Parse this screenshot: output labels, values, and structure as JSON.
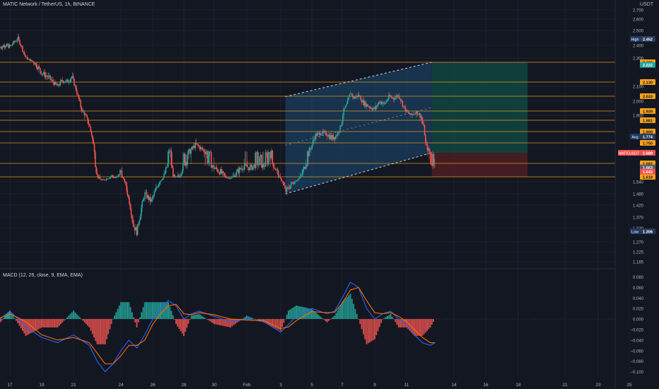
{
  "header": {
    "title": "MATIC Network / TetherUS, 1h, BINANCE",
    "unit": "USDT"
  },
  "macd": {
    "title": "MACD (12, 26, close, 9, EMA, EMA)",
    "ticks": [
      {
        "v": 0.08,
        "label": "0.080"
      },
      {
        "v": 0.06,
        "label": "0.060"
      },
      {
        "v": 0.04,
        "label": "0.040"
      },
      {
        "v": 0.02,
        "label": "0.020"
      },
      {
        "v": 0.0,
        "label": "0.000"
      },
      {
        "v": -0.02,
        "label": "−0.020"
      },
      {
        "v": -0.04,
        "label": "−0.040"
      },
      {
        "v": -0.06,
        "label": "−0.060"
      },
      {
        "v": -0.08,
        "label": "−0.080"
      },
      {
        "v": -0.1,
        "label": "−0.100"
      }
    ]
  },
  "chart_data": {
    "type": "candlestick",
    "symbol": "MATICUSDT",
    "interval": "1h",
    "exchange": "BINANCE",
    "y_ticks": [
      {
        "v": 2.7,
        "label": "2.700"
      },
      {
        "v": 2.6,
        "label": "2.600"
      },
      {
        "v": 2.5,
        "label": "2.500"
      },
      {
        "v": 2.4,
        "label": "2.400"
      },
      {
        "v": 2.3,
        "label": "2.300"
      },
      {
        "v": 2.1,
        "label": "2.100"
      },
      {
        "v": 2.0,
        "label": "2.000"
      },
      {
        "v": 1.9,
        "label": "1.900"
      },
      {
        "v": 1.54,
        "label": "1.540"
      },
      {
        "v": 1.48,
        "label": "1.480"
      },
      {
        "v": 1.42,
        "label": "1.420"
      },
      {
        "v": 1.37,
        "label": "1.370"
      },
      {
        "v": 1.32,
        "label": "1.320"
      },
      {
        "v": 1.27,
        "label": "1.270"
      },
      {
        "v": 1.225,
        "label": "1.225"
      },
      {
        "v": 1.185,
        "label": "1.185"
      }
    ],
    "x_ticks": [
      {
        "day": 17,
        "label": "17"
      },
      {
        "day": 19,
        "label": "19"
      },
      {
        "day": 21,
        "label": "21"
      },
      {
        "day": 24,
        "label": "24"
      },
      {
        "day": 26,
        "label": "26"
      },
      {
        "day": 28,
        "label": "28"
      },
      {
        "day": 30,
        "label": "30"
      },
      {
        "day": 32,
        "label": "Feb"
      },
      {
        "day": 34,
        "label": "3"
      },
      {
        "day": 36,
        "label": "5"
      },
      {
        "day": 38,
        "label": "7"
      },
      {
        "day": 40,
        "label": "9"
      },
      {
        "day": 42,
        "label": "11"
      },
      {
        "day": 45,
        "label": "14"
      },
      {
        "day": 47,
        "label": "16"
      },
      {
        "day": 49,
        "label": "18"
      },
      {
        "day": 52,
        "label": "21"
      },
      {
        "day": 54,
        "label": "23"
      },
      {
        "day": 56,
        "label": "25"
      }
    ],
    "horizontal_levels": [
      {
        "v": 2.236,
        "label": "2.236"
      },
      {
        "v": 2.13,
        "label": "2.130"
      },
      {
        "v": 2.033,
        "label": "2.033"
      },
      {
        "v": 1.939,
        "label": "1.939"
      },
      {
        "v": 1.881,
        "label": "1.881"
      },
      {
        "v": 1.808,
        "label": "1.808"
      },
      {
        "v": 1.75,
        "label": "1.750"
      },
      {
        "v": 1.682,
        "label": "1.682"
      },
      {
        "v": 1.618,
        "label": "1.618"
      }
    ],
    "price_markers": [
      {
        "v": 2.452,
        "tag": "High",
        "label": "2.452"
      },
      {
        "v": 1.774,
        "tag": "Avg",
        "label": "1.774"
      },
      {
        "v": 1.306,
        "tag": "Low",
        "label": "1.306"
      }
    ],
    "current": {
      "tag": "MATICUSDT",
      "v": 1.689,
      "label": "1.689"
    },
    "position_labels": [
      {
        "v": 2.222,
        "label": "2.222",
        "color": "#26a69a"
      },
      {
        "v": 1.663,
        "label": "1.663",
        "color": "#5d606b"
      },
      {
        "v": 1.643,
        "label": "1.643",
        "color": "#ef5350"
      }
    ],
    "position": {
      "entry": 1.689,
      "target": 2.236,
      "stop": 1.618
    },
    "channel": {
      "upper_start": 2.03,
      "upper_end": 2.236,
      "lower_start": 1.48,
      "lower_end": 1.689,
      "x_start": 34.3,
      "x_end": 43.6
    },
    "path": [
      [
        16.0,
        2.38
      ],
      [
        16.5,
        2.4
      ],
      [
        17.0,
        2.39
      ],
      [
        17.3,
        2.43
      ],
      [
        17.5,
        2.452
      ],
      [
        17.7,
        2.4
      ],
      [
        18.0,
        2.3
      ],
      [
        18.5,
        2.24
      ],
      [
        19.0,
        2.18
      ],
      [
        19.5,
        2.15
      ],
      [
        20.0,
        2.1
      ],
      [
        20.3,
        2.14
      ],
      [
        20.6,
        2.13
      ],
      [
        20.9,
        2.16
      ],
      [
        21.1,
        2.1
      ],
      [
        21.5,
        1.95
      ],
      [
        22.0,
        1.85
      ],
      [
        22.3,
        1.72
      ],
      [
        22.5,
        1.62
      ],
      [
        22.8,
        1.56
      ],
      [
        23.0,
        1.58
      ],
      [
        23.4,
        1.62
      ],
      [
        23.7,
        1.6
      ],
      [
        24.0,
        1.65
      ],
      [
        24.2,
        1.56
      ],
      [
        24.5,
        1.45
      ],
      [
        24.8,
        1.33
      ],
      [
        25.0,
        1.306
      ],
      [
        25.2,
        1.38
      ],
      [
        25.5,
        1.48
      ],
      [
        25.9,
        1.44
      ],
      [
        26.2,
        1.5
      ],
      [
        26.5,
        1.56
      ],
      [
        26.8,
        1.64
      ],
      [
        27.1,
        1.71
      ],
      [
        27.4,
        1.6
      ],
      [
        27.7,
        1.62
      ],
      [
        28.0,
        1.68
      ],
      [
        28.4,
        1.7
      ],
      [
        28.8,
        1.74
      ],
      [
        29.2,
        1.71
      ],
      [
        29.6,
        1.69
      ],
      [
        30.0,
        1.66
      ],
      [
        30.4,
        1.64
      ],
      [
        30.7,
        1.61
      ],
      [
        31.0,
        1.6
      ],
      [
        31.4,
        1.64
      ],
      [
        31.8,
        1.67
      ],
      [
        32.2,
        1.66
      ],
      [
        32.6,
        1.68
      ],
      [
        33.0,
        1.67
      ],
      [
        33.4,
        1.7
      ],
      [
        33.8,
        1.64
      ],
      [
        34.0,
        1.58
      ],
      [
        34.3,
        1.49
      ],
      [
        34.6,
        1.52
      ],
      [
        35.0,
        1.56
      ],
      [
        35.3,
        1.62
      ],
      [
        35.6,
        1.68
      ],
      [
        35.9,
        1.71
      ],
      [
        36.2,
        1.78
      ],
      [
        36.6,
        1.8
      ],
      [
        37.0,
        1.79
      ],
      [
        37.3,
        1.77
      ],
      [
        37.6,
        1.78
      ],
      [
        37.9,
        1.84
      ],
      [
        38.1,
        1.94
      ],
      [
        38.3,
        1.98
      ],
      [
        38.5,
        2.06
      ],
      [
        38.7,
        2.02
      ],
      [
        39.0,
        2.04
      ],
      [
        39.3,
        1.99
      ],
      [
        39.6,
        1.97
      ],
      [
        40.0,
        1.95
      ],
      [
        40.3,
        2.0
      ],
      [
        40.6,
        1.98
      ],
      [
        40.9,
        2.03
      ],
      [
        41.2,
        2.02
      ],
      [
        41.5,
        2.04
      ],
      [
        41.8,
        1.97
      ],
      [
        42.0,
        1.93
      ],
      [
        42.3,
        1.9
      ],
      [
        42.6,
        1.93
      ],
      [
        42.9,
        1.9
      ],
      [
        43.1,
        1.83
      ],
      [
        43.2,
        1.74
      ],
      [
        43.4,
        1.7
      ],
      [
        43.6,
        1.68
      ],
      [
        43.8,
        1.69
      ]
    ],
    "macd_path": [
      [
        16.0,
        0.0
      ],
      [
        17.0,
        0.015
      ],
      [
        18.0,
        -0.015
      ],
      [
        19.0,
        -0.035
      ],
      [
        20.0,
        -0.045
      ],
      [
        21.0,
        -0.03
      ],
      [
        22.0,
        -0.05
      ],
      [
        22.5,
        -0.08
      ],
      [
        23.0,
        -0.1
      ],
      [
        23.5,
        -0.085
      ],
      [
        24.0,
        -0.06
      ],
      [
        24.5,
        -0.04
      ],
      [
        25.0,
        -0.055
      ],
      [
        25.5,
        -0.03
      ],
      [
        26.0,
        0.0
      ],
      [
        26.5,
        0.02
      ],
      [
        27.0,
        0.035
      ],
      [
        27.5,
        0.025
      ],
      [
        28.0,
        0.0
      ],
      [
        28.5,
        0.01
      ],
      [
        29.0,
        0.015
      ],
      [
        30.0,
        0.005
      ],
      [
        31.0,
        -0.005
      ],
      [
        32.0,
        0.0
      ],
      [
        33.0,
        -0.005
      ],
      [
        34.0,
        -0.025
      ],
      [
        34.5,
        -0.01
      ],
      [
        35.0,
        0.005
      ],
      [
        36.0,
        0.02
      ],
      [
        37.0,
        0.01
      ],
      [
        37.5,
        0.015
      ],
      [
        38.0,
        0.04
      ],
      [
        38.5,
        0.07
      ],
      [
        39.0,
        0.06
      ],
      [
        39.5,
        0.02
      ],
      [
        40.0,
        0.0
      ],
      [
        40.5,
        0.01
      ],
      [
        41.0,
        0.015
      ],
      [
        41.5,
        0.0
      ],
      [
        42.0,
        -0.01
      ],
      [
        42.5,
        -0.03
      ],
      [
        43.0,
        -0.045
      ],
      [
        43.5,
        -0.05
      ],
      [
        43.8,
        -0.045
      ]
    ],
    "signal_path": [
      [
        16.0,
        0.002
      ],
      [
        17.0,
        0.01
      ],
      [
        18.0,
        -0.005
      ],
      [
        19.0,
        -0.03
      ],
      [
        20.0,
        -0.04
      ],
      [
        21.0,
        -0.035
      ],
      [
        22.0,
        -0.045
      ],
      [
        22.5,
        -0.065
      ],
      [
        23.0,
        -0.085
      ],
      [
        23.5,
        -0.085
      ],
      [
        24.0,
        -0.07
      ],
      [
        24.5,
        -0.05
      ],
      [
        25.0,
        -0.05
      ],
      [
        25.5,
        -0.04
      ],
      [
        26.0,
        -0.01
      ],
      [
        26.5,
        0.01
      ],
      [
        27.0,
        0.025
      ],
      [
        27.5,
        0.028
      ],
      [
        28.0,
        0.01
      ],
      [
        28.5,
        0.008
      ],
      [
        29.0,
        0.012
      ],
      [
        30.0,
        0.008
      ],
      [
        31.0,
        0.0
      ],
      [
        32.0,
        -0.002
      ],
      [
        33.0,
        -0.003
      ],
      [
        34.0,
        -0.018
      ],
      [
        34.5,
        -0.015
      ],
      [
        35.0,
        -0.003
      ],
      [
        36.0,
        0.014
      ],
      [
        37.0,
        0.012
      ],
      [
        37.5,
        0.013
      ],
      [
        38.0,
        0.03
      ],
      [
        38.5,
        0.055
      ],
      [
        39.0,
        0.06
      ],
      [
        39.5,
        0.035
      ],
      [
        40.0,
        0.012
      ],
      [
        40.5,
        0.01
      ],
      [
        41.0,
        0.012
      ],
      [
        41.5,
        0.005
      ],
      [
        42.0,
        -0.005
      ],
      [
        42.5,
        -0.02
      ],
      [
        43.0,
        -0.035
      ],
      [
        43.5,
        -0.045
      ],
      [
        43.8,
        -0.045
      ]
    ],
    "colors": {
      "background": "#131722",
      "up": "#26a69a",
      "down": "#ef5350",
      "level": "#f7a21b",
      "channel_fill": "#1c4a73",
      "target_fill": "#11463f",
      "stop_fill": "#4a1e24",
      "macd_line": "#2962ff",
      "signal_line": "#ff6d00",
      "high_low_tag": "#1e3a66"
    }
  }
}
